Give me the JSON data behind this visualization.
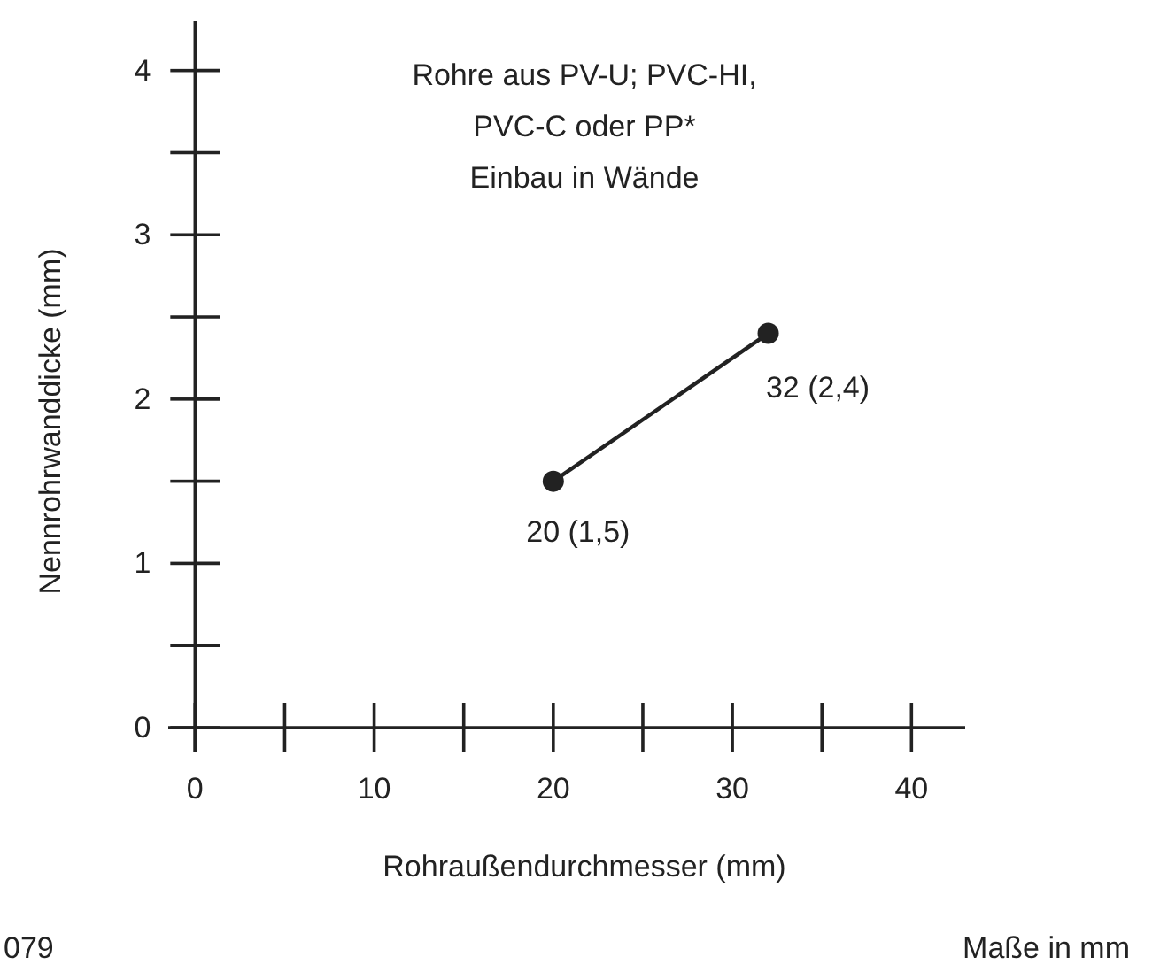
{
  "chart_data": {
    "type": "line",
    "title": "Rohre aus PV-U; PVC-HI,\nPVC-C oder PP*\nEinbau in Wände",
    "xlabel": "Rohraußendurchmesser (mm)",
    "ylabel": "Nennrohrwanddicke (mm)",
    "x": [
      20,
      32
    ],
    "series": [
      {
        "color": "#222222",
        "values": [
          1.5,
          2.4
        ],
        "value_labels": [
          "20 (1,5)",
          "32 (2,4)"
        ]
      }
    ],
    "xlim": [
      -1.5,
      43
    ],
    "ylim": [
      0,
      4.3
    ],
    "xticks": [
      0,
      {
        "value": 5,
        "label": null
      },
      10,
      {
        "value": 15,
        "label": null
      },
      20,
      {
        "value": 25,
        "label": null
      },
      30,
      {
        "value": 35,
        "label": null
      },
      40
    ],
    "yticks": [
      0,
      {
        "value": 0.5,
        "label": null
      },
      1,
      {
        "value": 1.5,
        "label": null
      },
      2,
      {
        "value": 2.5,
        "label": null
      },
      3,
      {
        "value": 3.5,
        "label": null
      },
      4
    ],
    "marker": "circle",
    "line_style": "solid",
    "grid": false,
    "annotations": [
      "079",
      "Maße in mm"
    ]
  }
}
